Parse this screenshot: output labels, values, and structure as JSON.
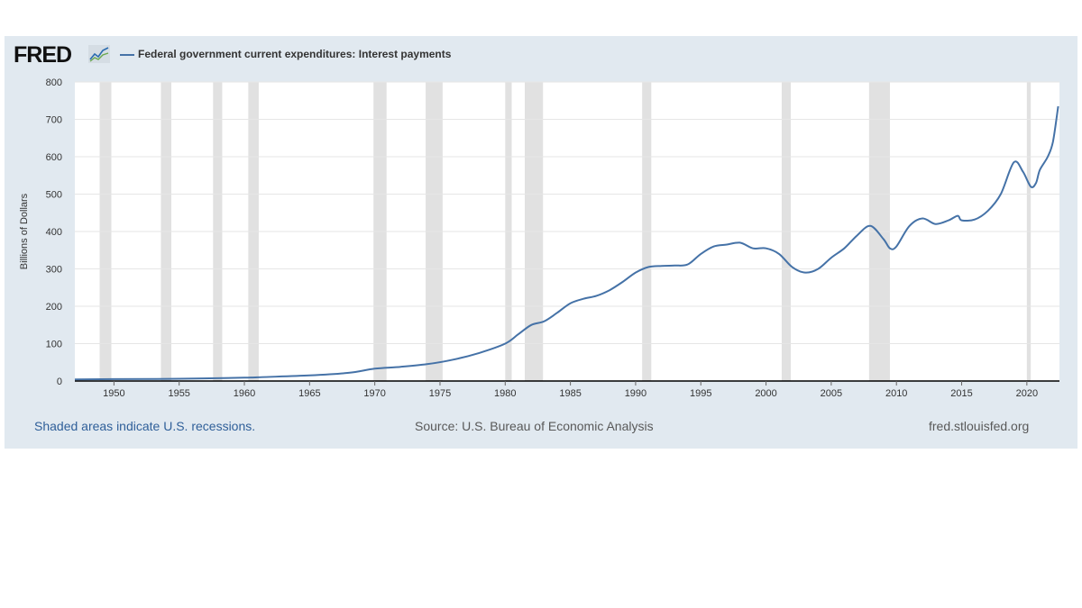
{
  "header": {
    "logo_text": "FRED",
    "logo_icon": "line-chart-icon"
  },
  "footer": {
    "recessions_note": "Shaded areas indicate U.S. recessions.",
    "source": "Source: U.S. Bureau of Economic Analysis",
    "site": "fred.stlouisfed.org"
  },
  "colors": {
    "series": "#4572a7",
    "recession_band": "#e1e1e1",
    "card_background": "#e1e9f0"
  },
  "chart_data": {
    "type": "line",
    "title": "",
    "xlabel": "",
    "ylabel": "Billions of Dollars",
    "xlim": [
      1947,
      2022.5
    ],
    "ylim": [
      0,
      800
    ],
    "yticks": [
      0,
      100,
      200,
      300,
      400,
      500,
      600,
      700,
      800
    ],
    "xticks": [
      1950,
      1955,
      1960,
      1965,
      1970,
      1975,
      1980,
      1985,
      1990,
      1995,
      2000,
      2005,
      2010,
      2015,
      2020
    ],
    "grid": true,
    "legend": "top-left",
    "recessions": [
      [
        1948.9,
        1949.8
      ],
      [
        1953.6,
        1954.4
      ],
      [
        1957.6,
        1958.3
      ],
      [
        1960.3,
        1961.1
      ],
      [
        1969.9,
        1970.9
      ],
      [
        1973.9,
        1975.2
      ],
      [
        1980.0,
        1980.5
      ],
      [
        1981.5,
        1982.9
      ],
      [
        1990.5,
        1991.2
      ],
      [
        2001.2,
        2001.9
      ],
      [
        2007.9,
        2009.5
      ],
      [
        2020.0,
        2020.3
      ]
    ],
    "series": [
      {
        "name": "Federal government current expenditures: Interest payments",
        "x": [
          1947,
          1950,
          1955,
          1960,
          1961,
          1965,
          1968,
          1970,
          1972,
          1974,
          1976,
          1978,
          1980,
          1981,
          1982,
          1983,
          1984,
          1985,
          1986,
          1987,
          1988,
          1989,
          1990,
          1991,
          1992,
          1993,
          1994,
          1995,
          1996,
          1997,
          1998,
          1999,
          2000,
          2001,
          2002,
          2003,
          2004,
          2005,
          2006,
          2007,
          2008,
          2009,
          2009.5,
          2010,
          2011,
          2012,
          2013,
          2014,
          2014.7,
          2015,
          2016,
          2017,
          2018,
          2019,
          2019.7,
          2020.3,
          2020.7,
          2021,
          2021.6,
          2022,
          2022.4
        ],
        "y": [
          4,
          5,
          6,
          9,
          10,
          15,
          22,
          33,
          38,
          45,
          57,
          75,
          100,
          125,
          150,
          160,
          183,
          208,
          220,
          228,
          243,
          265,
          290,
          305,
          308,
          309,
          312,
          340,
          360,
          365,
          370,
          355,
          355,
          340,
          305,
          290,
          300,
          330,
          355,
          390,
          415,
          380,
          355,
          360,
          415,
          435,
          420,
          430,
          442,
          430,
          432,
          455,
          500,
          585,
          560,
          520,
          530,
          565,
          600,
          640,
          735
        ]
      }
    ]
  }
}
